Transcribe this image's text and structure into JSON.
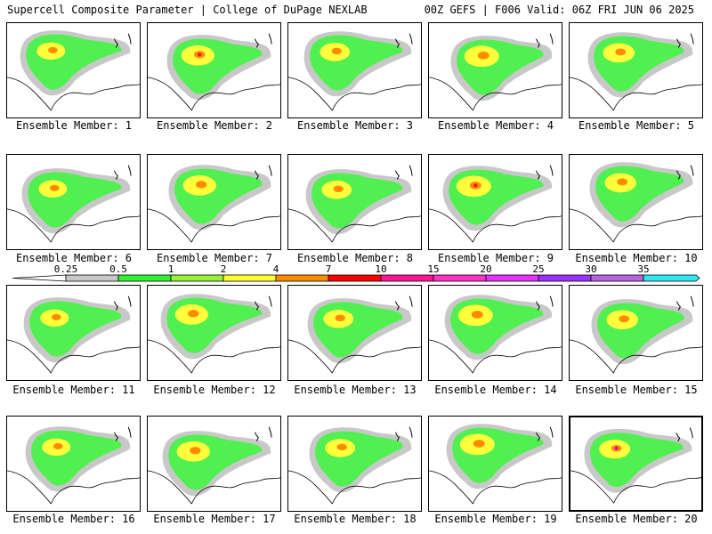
{
  "header": {
    "left": "Supercell Composite Parameter | College of DuPage NEXLAB",
    "right": "00Z GEFS | F006 Valid: 06Z FRI JUN 06 2025"
  },
  "members": [
    {
      "caption": "Ensemble Member: 1"
    },
    {
      "caption": "Ensemble Member: 2"
    },
    {
      "caption": "Ensemble Member: 3"
    },
    {
      "caption": "Ensemble Member: 4"
    },
    {
      "caption": "Ensemble Member: 5"
    },
    {
      "caption": "Ensemble Member: 6"
    },
    {
      "caption": "Ensemble Member: 7"
    },
    {
      "caption": "Ensemble Member: 8"
    },
    {
      "caption": "Ensemble Member: 9"
    },
    {
      "caption": "Ensemble Member: 10"
    },
    {
      "caption": "Ensemble Member: 11"
    },
    {
      "caption": "Ensemble Member: 12"
    },
    {
      "caption": "Ensemble Member: 13"
    },
    {
      "caption": "Ensemble Member: 14"
    },
    {
      "caption": "Ensemble Member: 15"
    },
    {
      "caption": "Ensemble Member: 16"
    },
    {
      "caption": "Ensemble Member: 17"
    },
    {
      "caption": "Ensemble Member: 18"
    },
    {
      "caption": "Ensemble Member: 19"
    },
    {
      "caption": "Ensemble Member: 20"
    }
  ],
  "selected_member": 20,
  "legend": {
    "labels": [
      "0.25",
      "0.5",
      "1",
      "2",
      "4",
      "7",
      "10",
      "15",
      "20",
      "25",
      "30",
      "35"
    ],
    "colors": [
      "#c8c8c8",
      "#32f032",
      "#98f03c",
      "#ffff32",
      "#ff8c00",
      "#ff0000",
      "#ff1493",
      "#ff32c8",
      "#e632ff",
      "#9b32ff",
      "#b464dc",
      "#32e6f0"
    ]
  },
  "contour_colors": {
    "gray": "#c8c8c8",
    "green": "#4ff04f",
    "yellow": "#ffff3c",
    "orange": "#ff8c00",
    "red": "#ff0000",
    "magenta": "#c800c8"
  },
  "map_line_color": "#000000"
}
